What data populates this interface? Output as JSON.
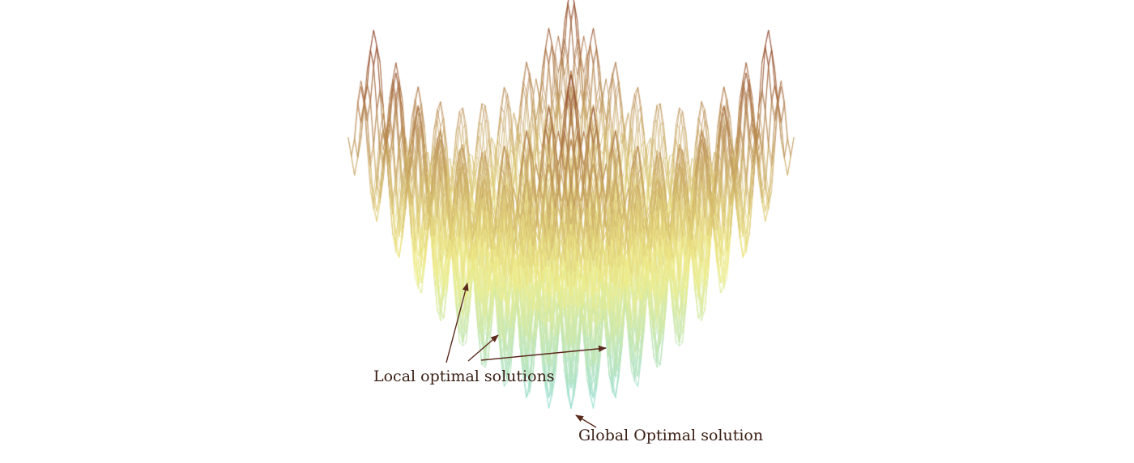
{
  "figure": {
    "kind": "3d-wireframe-surface",
    "colormap": {
      "low": "#8fdcd8",
      "mid": "#f2ee8a",
      "high": "#8a3c24"
    },
    "background": "#ffffff",
    "label_color": "#3a1f15",
    "arrow_color": "#5a2a1c"
  },
  "annotations": {
    "local_label": "Local optimal solutions",
    "global_label": "Global Optimal solution"
  }
}
